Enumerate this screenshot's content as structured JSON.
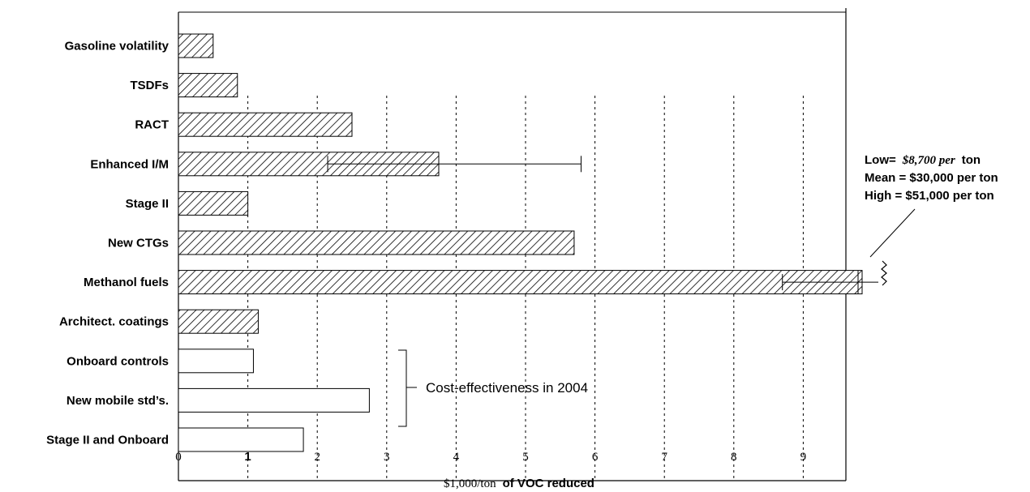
{
  "chart_data": {
    "type": "bar",
    "orientation": "horizontal",
    "categories": [
      "Gasoline volatility",
      "TSDFs",
      "RACT",
      "Enhanced I/M",
      "Stage II",
      "New CTGs",
      "Methanol fuels",
      "Architect. coatings",
      "Onboard controls",
      "New mobile std’s.",
      "Stage II and Onboard"
    ],
    "values": [
      0.5,
      0.85,
      2.5,
      3.75,
      1.0,
      5.7,
      10.4,
      1.15,
      1.08,
      2.75,
      1.8
    ],
    "fill": [
      "hatched",
      "hatched",
      "hatched",
      "hatched",
      "hatched",
      "hatched",
      "hatched",
      "hatched",
      "open",
      "open",
      "open"
    ],
    "error_bars": [
      {
        "category": "Enhanced I/M",
        "low": 2.15,
        "high": 5.8
      },
      {
        "category": "Methanol fuels",
        "low": 8.7,
        "high": 51
      }
    ],
    "x_axis_break": true,
    "xlim": [
      0,
      10
    ],
    "xticks": [
      "0",
      "1",
      "2",
      "3",
      "4",
      "5",
      "6",
      "7",
      "8",
      "9"
    ],
    "xlabel_part1": "$1,000/ton",
    "xlabel_part2": "of VOC reduced",
    "grid": "vertical dotted",
    "annotations": {
      "methanol_low_label": "Low=",
      "methanol_low_value": "$8,700 per",
      "methanol_low_unit": "ton",
      "methanol_mean": "Mean = $30,000 per ton",
      "methanol_high": "High = $51,000 per ton",
      "open_bars_note": "Cost-effectiveness in 2004"
    }
  }
}
